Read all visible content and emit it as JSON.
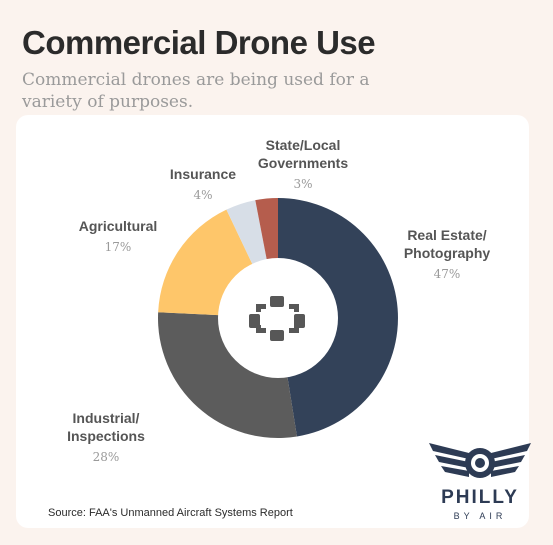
{
  "header": {
    "title": "Commercial Drone Use",
    "subtitle": "Commercial drones are being used for a variety of purposes."
  },
  "chart_data": {
    "type": "pie",
    "donut": true,
    "start_angle_deg": 0,
    "slices": [
      {
        "label_lines": [
          "Real Estate/",
          "Photography"
        ],
        "value": 47,
        "pct_label": "47%",
        "color": "#334259"
      },
      {
        "label_lines": [
          "Industrial/",
          "Inspections"
        ],
        "value": 28,
        "pct_label": "28%",
        "color": "#5c5c5c"
      },
      {
        "label_lines": [
          "Agricultural"
        ],
        "value": 17,
        "pct_label": "17%",
        "color": "#fec66a"
      },
      {
        "label_lines": [
          "Insurance"
        ],
        "value": 4,
        "pct_label": "4%",
        "color": "#d7dee7"
      },
      {
        "label_lines": [
          "State/Local",
          "Governments"
        ],
        "value": 3,
        "pct_label": "3%",
        "color": "#b55d4d"
      }
    ],
    "center_icon": "drone-icon"
  },
  "footer": {
    "source": "Source: FAA's Unmanned Aircraft Systems Report"
  },
  "logo": {
    "name": "PHILLY",
    "tagline": "BY AIR",
    "icon": "winged-camera-logo",
    "color": "#2d3b54"
  }
}
